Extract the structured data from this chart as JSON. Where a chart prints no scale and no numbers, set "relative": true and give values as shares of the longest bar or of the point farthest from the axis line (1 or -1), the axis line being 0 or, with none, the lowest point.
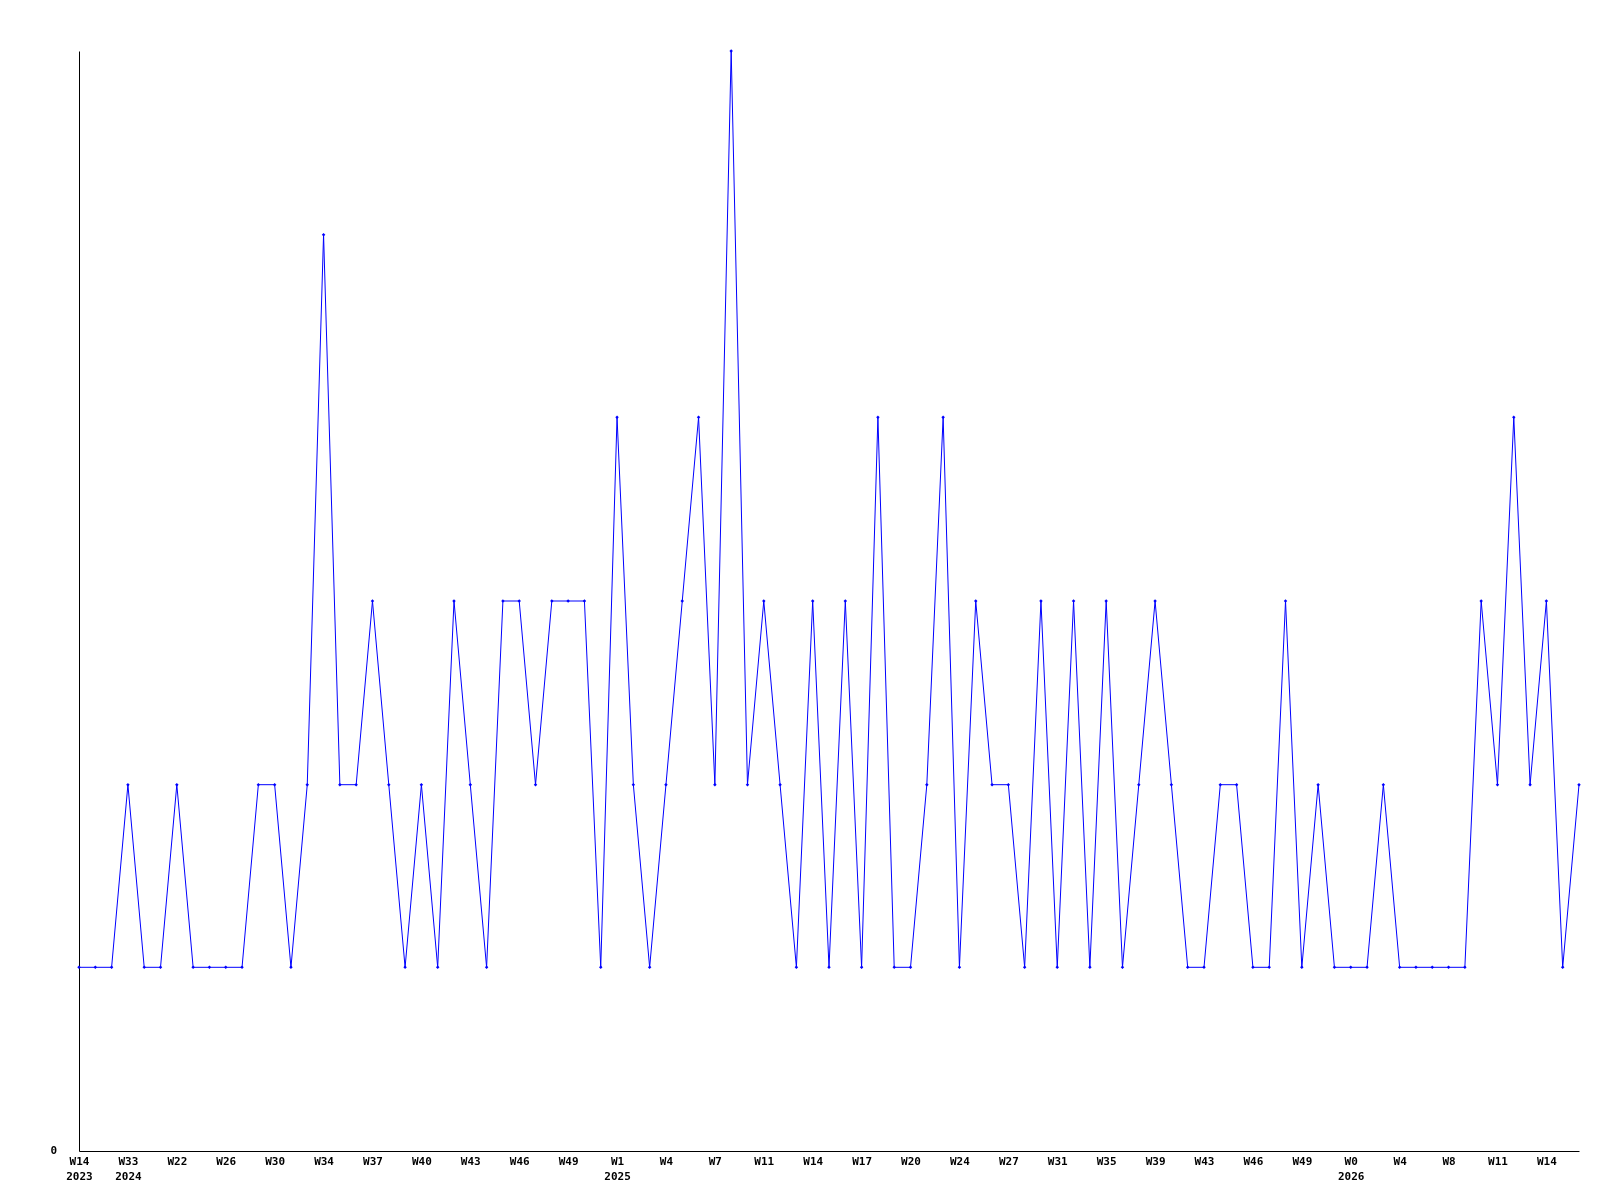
{
  "chart_data": {
    "type": "line",
    "relative": true,
    "marker": "diamond",
    "grid": false,
    "annotations": [
      "0"
    ],
    "categories": [
      "W14\n2023",
      null,
      null,
      "W33\n2024",
      null,
      null,
      "W22",
      null,
      null,
      "W26",
      null,
      null,
      "W30",
      null,
      null,
      "W34",
      null,
      null,
      "W37",
      null,
      null,
      "W40",
      null,
      null,
      "W43",
      null,
      null,
      "W46",
      null,
      null,
      "W49",
      null,
      null,
      "W1\n2025",
      null,
      null,
      "W4",
      null,
      null,
      "W7",
      null,
      null,
      "W11",
      null,
      null,
      "W14",
      null,
      null,
      "W17",
      null,
      null,
      "W20",
      null,
      null,
      "W24",
      null,
      null,
      "W27",
      null,
      null,
      "W31",
      null,
      null,
      "W35",
      null,
      null,
      "W39",
      null,
      null,
      "W43",
      null,
      null,
      "W46",
      null,
      null,
      "W49",
      null,
      null,
      "W0\n2026",
      null,
      null,
      "W4",
      null,
      null,
      "W8",
      null,
      null,
      "W11",
      null,
      null,
      "W14",
      null,
      null
    ],
    "series": [
      {
        "color": "#0000ff",
        "values": [
          0.167,
          0.167,
          0.167,
          0.333,
          0.167,
          0.167,
          0.333,
          0.167,
          0.167,
          0.167,
          0.167,
          0.333,
          0.333,
          0.167,
          0.333,
          0.833,
          0.333,
          0.333,
          0.5,
          0.333,
          0.167,
          0.333,
          0.167,
          0.5,
          0.333,
          0.167,
          0.5,
          0.5,
          0.333,
          0.5,
          0.5,
          0.5,
          0.167,
          0.667,
          0.333,
          0.167,
          0.333,
          0.5,
          0.667,
          0.333,
          1,
          0.333,
          0.5,
          0.333,
          0.167,
          0.5,
          0.167,
          0.5,
          0.167,
          0.667,
          0.167,
          0.167,
          0.333,
          0.667,
          0.167,
          0.5,
          0.333,
          0.333,
          0.167,
          0.5,
          0.167,
          0.5,
          0.167,
          0.5,
          0.167,
          0.333,
          0.5,
          0.333,
          0.167,
          0.167,
          0.333,
          0.333,
          0.167,
          0.167,
          0.5,
          0.167,
          0.333,
          0.167,
          0.167,
          0.167,
          0.333,
          0.167,
          0.167,
          0.167,
          0.167,
          0.167,
          0.5,
          0.333,
          0.667,
          0.333,
          0.5,
          0.167,
          0.333
        ]
      }
    ]
  }
}
